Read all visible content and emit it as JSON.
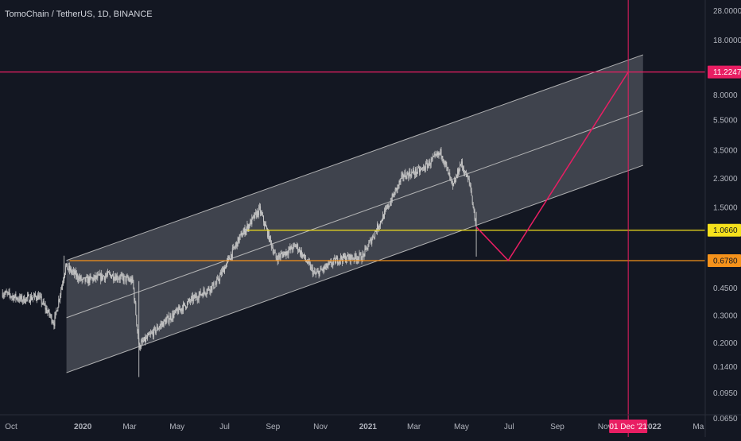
{
  "header": {
    "title": "TomoChain / TetherUS, 1D, BINANCE"
  },
  "colors": {
    "background": "#131722",
    "axis_text": "#b2b5be",
    "candle": "#c8c8c8",
    "channel_fill": "#9598a1",
    "channel_line": "#c8c8c8",
    "yellow": "#f5e11c",
    "orange": "#f5921b",
    "pink": "#e91e63"
  },
  "chart_data": {
    "type": "candlestick",
    "title": "TomoChain / TetherUS, 1D, BINANCE",
    "y_scale": "log",
    "ylim": [
      0.058,
      32
    ],
    "y_ticks": [
      {
        "value": 28,
        "label": "28.0000"
      },
      {
        "value": 18,
        "label": "18.0000"
      },
      {
        "value": 8,
        "label": "8.0000"
      },
      {
        "value": 5.5,
        "label": "5.5000"
      },
      {
        "value": 3.5,
        "label": "3.5000"
      },
      {
        "value": 2.3,
        "label": "2.3000"
      },
      {
        "value": 1.5,
        "label": "1.5000"
      },
      {
        "value": 0.45,
        "label": "0.4500"
      },
      {
        "value": 0.3,
        "label": "0.3000"
      },
      {
        "value": 0.2,
        "label": "0.2000"
      },
      {
        "value": 0.14,
        "label": "0.1400"
      },
      {
        "value": 0.095,
        "label": "0.0950"
      },
      {
        "value": 0.065,
        "label": "0.0650"
      }
    ],
    "x_ticks": [
      {
        "date": "2019-10-01",
        "label": "Oct"
      },
      {
        "date": "2020-01-01",
        "label": "2020"
      },
      {
        "date": "2020-03-01",
        "label": "Mar"
      },
      {
        "date": "2020-05-01",
        "label": "May"
      },
      {
        "date": "2020-07-01",
        "label": "Jul"
      },
      {
        "date": "2020-09-01",
        "label": "Sep"
      },
      {
        "date": "2020-11-01",
        "label": "Nov"
      },
      {
        "date": "2021-01-01",
        "label": "2021"
      },
      {
        "date": "2021-03-01",
        "label": "Mar"
      },
      {
        "date": "2021-05-01",
        "label": "May"
      },
      {
        "date": "2021-07-01",
        "label": "Jul"
      },
      {
        "date": "2021-09-01",
        "label": "Sep"
      },
      {
        "date": "2021-11-01",
        "label": "Nov"
      },
      {
        "date": "2022-01-01",
        "label": "2022"
      },
      {
        "date": "2022-03-01",
        "label": "Ma"
      }
    ],
    "price_path": [
      {
        "date": "2019-09-20",
        "value": 0.42
      },
      {
        "date": "2019-10-15",
        "value": 0.38
      },
      {
        "date": "2019-11-05",
        "value": 0.4
      },
      {
        "date": "2019-11-25",
        "value": 0.27
      },
      {
        "date": "2019-12-10",
        "value": 0.62
      },
      {
        "date": "2020-01-01",
        "value": 0.5
      },
      {
        "date": "2020-02-05",
        "value": 0.55
      },
      {
        "date": "2020-03-05",
        "value": 0.5
      },
      {
        "date": "2020-03-13",
        "value": 0.19
      },
      {
        "date": "2020-04-10",
        "value": 0.26
      },
      {
        "date": "2020-05-20",
        "value": 0.38
      },
      {
        "date": "2020-06-20",
        "value": 0.48
      },
      {
        "date": "2020-07-20",
        "value": 0.95
      },
      {
        "date": "2020-08-15",
        "value": 1.45
      },
      {
        "date": "2020-09-05",
        "value": 0.7
      },
      {
        "date": "2020-10-01",
        "value": 0.85
      },
      {
        "date": "2020-10-25",
        "value": 0.55
      },
      {
        "date": "2020-11-25",
        "value": 0.7
      },
      {
        "date": "2020-12-25",
        "value": 0.72
      },
      {
        "date": "2021-01-20",
        "value": 1.3
      },
      {
        "date": "2021-02-15",
        "value": 2.4
      },
      {
        "date": "2021-03-10",
        "value": 2.6
      },
      {
        "date": "2021-04-05",
        "value": 3.4
      },
      {
        "date": "2021-04-20",
        "value": 2.0
      },
      {
        "date": "2021-04-30",
        "value": 2.9
      },
      {
        "date": "2021-05-12",
        "value": 2.1
      },
      {
        "date": "2021-05-20",
        "value": 1.1
      }
    ],
    "channel": {
      "upper": [
        {
          "date": "2019-12-11",
          "value": 0.68
        },
        {
          "date": "2021-12-20",
          "value": 14.5
        }
      ],
      "middle": [
        {
          "date": "2019-12-11",
          "value": 0.29
        },
        {
          "date": "2021-12-20",
          "value": 6.3
        }
      ],
      "lower": [
        {
          "date": "2019-12-11",
          "value": 0.128
        },
        {
          "date": "2021-12-20",
          "value": 2.8
        }
      ]
    },
    "levels": [
      {
        "name": "yellow",
        "value": 1.066,
        "label": "1.0660",
        "from": "2020-07-30"
      },
      {
        "name": "orange",
        "value": 0.678,
        "label": "0.6780",
        "from": "2019-12-15"
      },
      {
        "name": "pink",
        "value": 11.2247,
        "label": "11.2247",
        "from": null
      }
    ],
    "projection": [
      {
        "date": "2021-05-20",
        "value": 1.12
      },
      {
        "date": "2021-06-30",
        "value": 0.68
      },
      {
        "date": "2021-12-01",
        "value": 11.2247
      }
    ],
    "crosshair": {
      "date": "2021-12-01",
      "label": "01 Dec '21"
    }
  }
}
